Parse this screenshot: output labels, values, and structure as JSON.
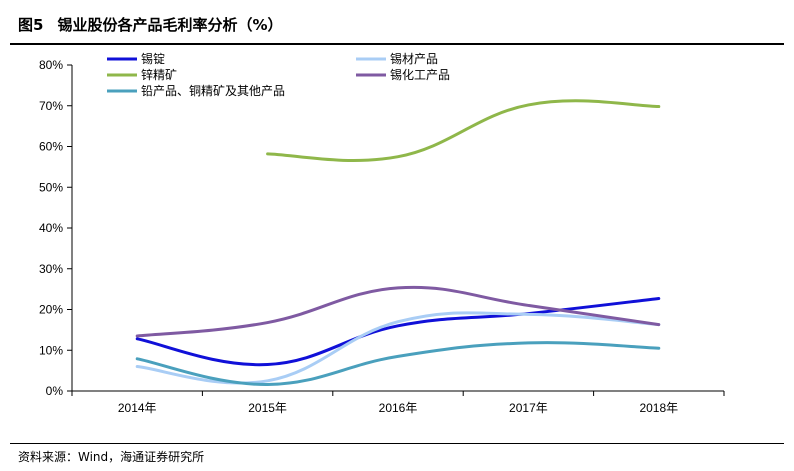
{
  "figure": {
    "number": "图5",
    "title": "锡业股份各产品毛利率分析（%）"
  },
  "source_note": "资料来源：Wind，海通证券研究所",
  "chart_data": {
    "type": "line",
    "title": "锡业股份各产品毛利率分析（%）",
    "xlabel": "",
    "ylabel": "",
    "categories": [
      "2014年",
      "2015年",
      "2016年",
      "2017年",
      "2018年"
    ],
    "y_ticks": [
      "0%",
      "10%",
      "20%",
      "30%",
      "40%",
      "50%",
      "60%",
      "70%",
      "80%"
    ],
    "ylim": [
      0,
      80
    ],
    "grid": false,
    "smooth": true,
    "legend_position": "top",
    "series": [
      {
        "name": "锡锭",
        "color": "#1010d8",
        "values": [
          12.8,
          6.5,
          16.0,
          19.0,
          22.7
        ]
      },
      {
        "name": "锡材产品",
        "color": "#a9cdf5",
        "values": [
          6.0,
          2.5,
          17.0,
          18.8,
          16.3
        ]
      },
      {
        "name": "锌精矿",
        "color": "#8fb74a",
        "values": [
          null,
          58.2,
          57.5,
          70.2,
          69.8
        ]
      },
      {
        "name": "锡化工产品",
        "color": "#7f5aa2",
        "values": [
          13.5,
          16.8,
          25.3,
          21.0,
          16.3
        ]
      },
      {
        "name": "铅产品、铜精矿及其他产品",
        "color": "#4aa0bd",
        "values": [
          7.9,
          1.6,
          8.5,
          11.8,
          10.5
        ]
      }
    ]
  }
}
